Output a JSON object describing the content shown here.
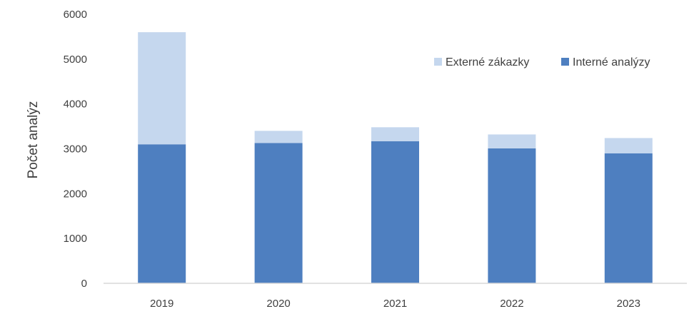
{
  "chart_data": {
    "type": "bar",
    "stacked": true,
    "categories": [
      "2019",
      "2020",
      "2021",
      "2022",
      "2023"
    ],
    "series": [
      {
        "name": "Interné analýzy",
        "values": [
          3100,
          3130,
          3170,
          3010,
          2900
        ],
        "color": "#4e7fc0"
      },
      {
        "name": "Externé zákazky",
        "values": [
          2500,
          270,
          310,
          310,
          340
        ],
        "color": "#c5d7ee"
      }
    ],
    "title": "",
    "xlabel": "",
    "ylabel": "Počet analýz",
    "ylim": [
      0,
      6000
    ],
    "yticks": [
      "0",
      "1000",
      "2000",
      "3000",
      "4000",
      "5000",
      "6000"
    ],
    "grid": false,
    "legend": {
      "position": "top-right",
      "order": [
        "Externé zákazky",
        "Interné analýzy"
      ]
    }
  }
}
